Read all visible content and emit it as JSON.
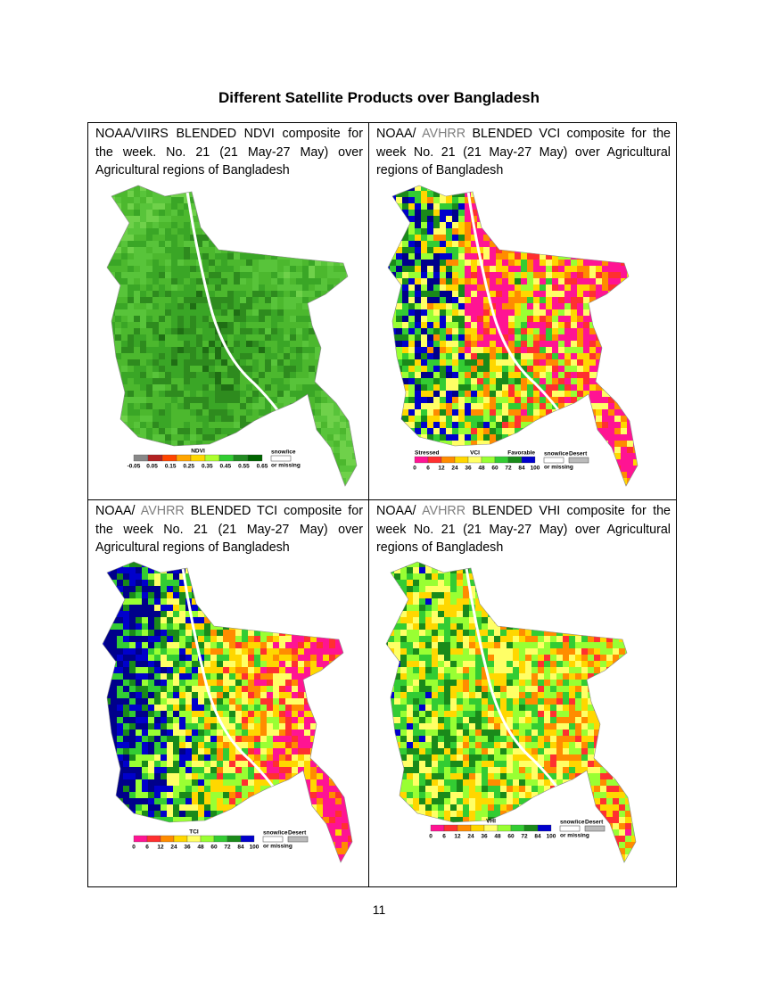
{
  "title": "Different Satellite Products over Bangladesh",
  "cells": [
    {
      "caption": [
        {
          "text": "NOAA/VIIRS BLENDED NDVI composite for the week. No. 21 (21 May-27 May) over Agricultural regions of Bangladesh"
        }
      ],
      "legend": {
        "title": "NDVI",
        "ticks": [
          "-0.05",
          "0.05",
          "0.15",
          "0.25",
          "0.35",
          "0.45",
          "0.55",
          "0.65"
        ],
        "notes": [
          "snow/ice",
          "or missing"
        ]
      }
    },
    {
      "caption": [
        {
          "text": "NOAA/ "
        },
        {
          "text": "AVHRR",
          "color": "#7f7f7f"
        },
        {
          "text": " BLENDED VCI composite for the week No. 21 (21 May-27 May)  over Agricultural regions of Bangladesh"
        }
      ],
      "legend": {
        "title": "VCI",
        "low": "Stressed",
        "high": "Favorable",
        "ticks": [
          "0",
          "6",
          "12",
          "24",
          "36",
          "48",
          "60",
          "72",
          "84",
          "100"
        ],
        "notes": [
          "snow/ice",
          "or missing",
          "Desert"
        ]
      }
    },
    {
      "caption": [
        {
          "text": "NOAA/ "
        },
        {
          "text": "AVHRR",
          "color": "#7f7f7f"
        },
        {
          "text": " BLENDED TCI composite for the week No. 21 (21 May-27 May) over Agricultural regions of Bangladesh"
        }
      ],
      "legend": {
        "title": "TCI",
        "ticks": [
          "0",
          "6",
          "12",
          "24",
          "36",
          "48",
          "60",
          "72",
          "84",
          "100"
        ],
        "notes": [
          "snow/ice",
          "or missing",
          "Desert"
        ]
      }
    },
    {
      "caption": [
        {
          "text": "NOAA/ "
        },
        {
          "text": "AVHRR",
          "color": "#7f7f7f"
        },
        {
          "text": " BLENDED VHI composite for the week No. 21 (21 May-27 May) over Agricultural regions of Bangladesh"
        }
      ],
      "legend": {
        "title": "VHI",
        "ticks": [
          "0",
          "6",
          "12",
          "24",
          "36",
          "48",
          "60",
          "72",
          "84",
          "100"
        ],
        "notes": [
          "snow/ice",
          "or missing",
          "Desert"
        ]
      }
    }
  ],
  "page_number": "11"
}
